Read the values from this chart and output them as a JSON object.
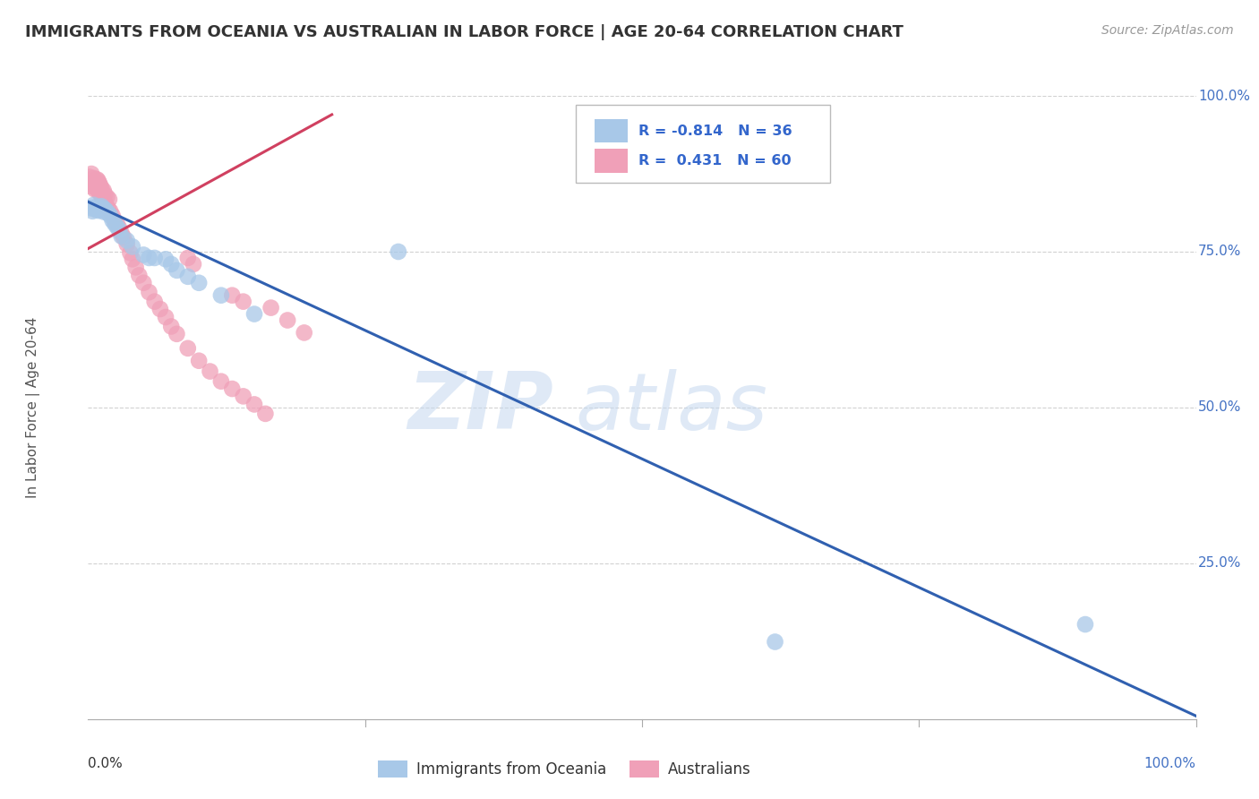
{
  "title": "IMMIGRANTS FROM OCEANIA VS AUSTRALIAN IN LABOR FORCE | AGE 20-64 CORRELATION CHART",
  "source": "Source: ZipAtlas.com",
  "ylabel": "In Labor Force | Age 20-64",
  "watermark_zip": "ZIP",
  "watermark_atlas": "atlas",
  "legend_blue_label": "Immigrants from Oceania",
  "legend_pink_label": "Australians",
  "R_blue": -0.814,
  "N_blue": 36,
  "R_pink": 0.431,
  "N_pink": 60,
  "blue_color": "#A8C8E8",
  "pink_color": "#F0A0B8",
  "blue_line_color": "#3060B0",
  "pink_line_color": "#D04060",
  "background_color": "#FFFFFF",
  "grid_color": "#CCCCCC",
  "title_color": "#333333",
  "source_color": "#999999",
  "axis_label_color": "#555555",
  "ytick_color": "#4472C4",
  "blue_dots_x": [
    0.002,
    0.004,
    0.005,
    0.006,
    0.007,
    0.008,
    0.009,
    0.01,
    0.011,
    0.012,
    0.013,
    0.014,
    0.015,
    0.016,
    0.018,
    0.02,
    0.022,
    0.024,
    0.026,
    0.028,
    0.03,
    0.035,
    0.04,
    0.05,
    0.055,
    0.06,
    0.07,
    0.075,
    0.08,
    0.09,
    0.1,
    0.12,
    0.15,
    0.28,
    0.62,
    0.9
  ],
  "blue_dots_y": [
    0.82,
    0.815,
    0.825,
    0.818,
    0.822,
    0.819,
    0.816,
    0.821,
    0.817,
    0.823,
    0.82,
    0.814,
    0.818,
    0.816,
    0.812,
    0.808,
    0.8,
    0.795,
    0.79,
    0.785,
    0.775,
    0.768,
    0.758,
    0.745,
    0.74,
    0.74,
    0.738,
    0.73,
    0.72,
    0.71,
    0.7,
    0.68,
    0.65,
    0.75,
    0.124,
    0.152
  ],
  "pink_dots_x": [
    0.001,
    0.002,
    0.003,
    0.004,
    0.005,
    0.005,
    0.006,
    0.006,
    0.007,
    0.008,
    0.008,
    0.009,
    0.009,
    0.01,
    0.01,
    0.011,
    0.012,
    0.012,
    0.013,
    0.014,
    0.015,
    0.015,
    0.016,
    0.017,
    0.018,
    0.019,
    0.02,
    0.022,
    0.024,
    0.026,
    0.028,
    0.03,
    0.032,
    0.035,
    0.038,
    0.04,
    0.043,
    0.046,
    0.05,
    0.055,
    0.06,
    0.065,
    0.07,
    0.075,
    0.08,
    0.09,
    0.1,
    0.11,
    0.12,
    0.13,
    0.14,
    0.15,
    0.16,
    0.09,
    0.095,
    0.13,
    0.14,
    0.165,
    0.18,
    0.195
  ],
  "pink_dots_y": [
    0.87,
    0.855,
    0.875,
    0.86,
    0.868,
    0.856,
    0.862,
    0.85,
    0.858,
    0.866,
    0.852,
    0.864,
    0.848,
    0.86,
    0.845,
    0.856,
    0.84,
    0.852,
    0.835,
    0.848,
    0.83,
    0.842,
    0.825,
    0.838,
    0.82,
    0.834,
    0.815,
    0.808,
    0.8,
    0.795,
    0.788,
    0.78,
    0.773,
    0.762,
    0.748,
    0.738,
    0.725,
    0.712,
    0.7,
    0.685,
    0.67,
    0.658,
    0.645,
    0.63,
    0.618,
    0.595,
    0.575,
    0.558,
    0.542,
    0.53,
    0.518,
    0.505,
    0.49,
    0.74,
    0.73,
    0.68,
    0.67,
    0.66,
    0.64,
    0.62
  ],
  "blue_trend_x": [
    0.0,
    1.0
  ],
  "blue_trend_y": [
    0.83,
    0.005
  ],
  "pink_trend_x": [
    0.0,
    0.22
  ],
  "pink_trend_y": [
    0.755,
    0.97
  ],
  "xlim": [
    0.0,
    1.0
  ],
  "ylim": [
    0.0,
    1.0
  ],
  "yticks": [
    0.0,
    0.25,
    0.5,
    0.75,
    1.0
  ],
  "ytick_labels_right": [
    "",
    "25.0%",
    "50.0%",
    "75.0%",
    "100.0%"
  ],
  "xtick_label_left": "0.0%",
  "xtick_label_right": "100.0%"
}
